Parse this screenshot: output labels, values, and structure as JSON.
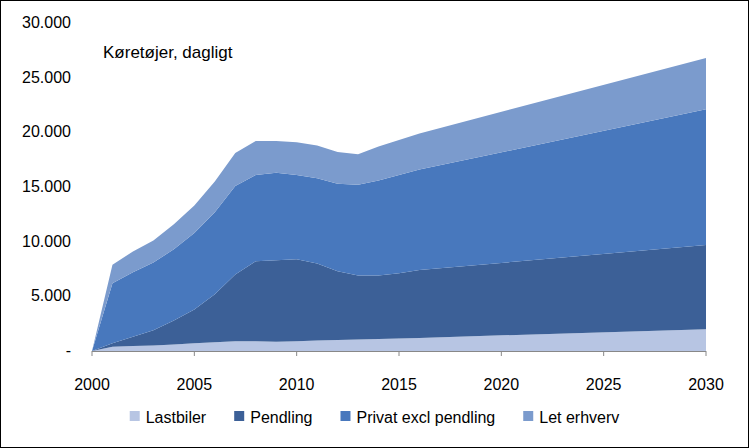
{
  "chart_data": {
    "type": "area",
    "stacked": true,
    "y_label": "Køretøjer, dagligt",
    "x": [
      2000,
      2001,
      2002,
      2003,
      2004,
      2005,
      2006,
      2007,
      2008,
      2009,
      2010,
      2011,
      2012,
      2013,
      2014,
      2015,
      2016,
      2030
    ],
    "xlim": [
      2000,
      2030
    ],
    "xticks": [
      2000,
      2005,
      2010,
      2015,
      2020,
      2025,
      2030
    ],
    "ylim": [
      0,
      30000
    ],
    "yticks": [
      {
        "value": 0,
        "label": "-"
      },
      {
        "value": 5000,
        "label": "5.000"
      },
      {
        "value": 10000,
        "label": "10.000"
      },
      {
        "value": 15000,
        "label": "15.000"
      },
      {
        "value": 20000,
        "label": "20.000"
      },
      {
        "value": 25000,
        "label": "25.000"
      },
      {
        "value": 30000,
        "label": "30.000"
      }
    ],
    "legend": "bottom",
    "series": [
      {
        "name": "Lastbiler",
        "color": "#b7c5e3",
        "values": [
          0,
          400,
          450,
          500,
          600,
          700,
          800,
          900,
          900,
          850,
          900,
          950,
          1000,
          1050,
          1100,
          1150,
          1200,
          2000
        ]
      },
      {
        "name": "Pendling",
        "color": "#3c6097",
        "values": [
          0,
          300,
          850,
          1400,
          2200,
          3100,
          4400,
          6100,
          7300,
          7450,
          7500,
          7050,
          6300,
          5850,
          5800,
          5950,
          6200,
          7700
        ]
      },
      {
        "name": "Privat excl pendling",
        "color": "#4878bd",
        "values": [
          0,
          5500,
          5900,
          6200,
          6500,
          7000,
          7500,
          8100,
          7900,
          8000,
          7700,
          7800,
          8000,
          8300,
          8700,
          9000,
          9200,
          12400
        ]
      },
      {
        "name": "Let erhverv",
        "color": "#7b9bcd",
        "values": [
          0,
          1700,
          1900,
          2000,
          2300,
          2500,
          2800,
          3000,
          3100,
          2900,
          3000,
          3000,
          2900,
          2800,
          3100,
          3200,
          3300,
          4700
        ]
      }
    ]
  }
}
